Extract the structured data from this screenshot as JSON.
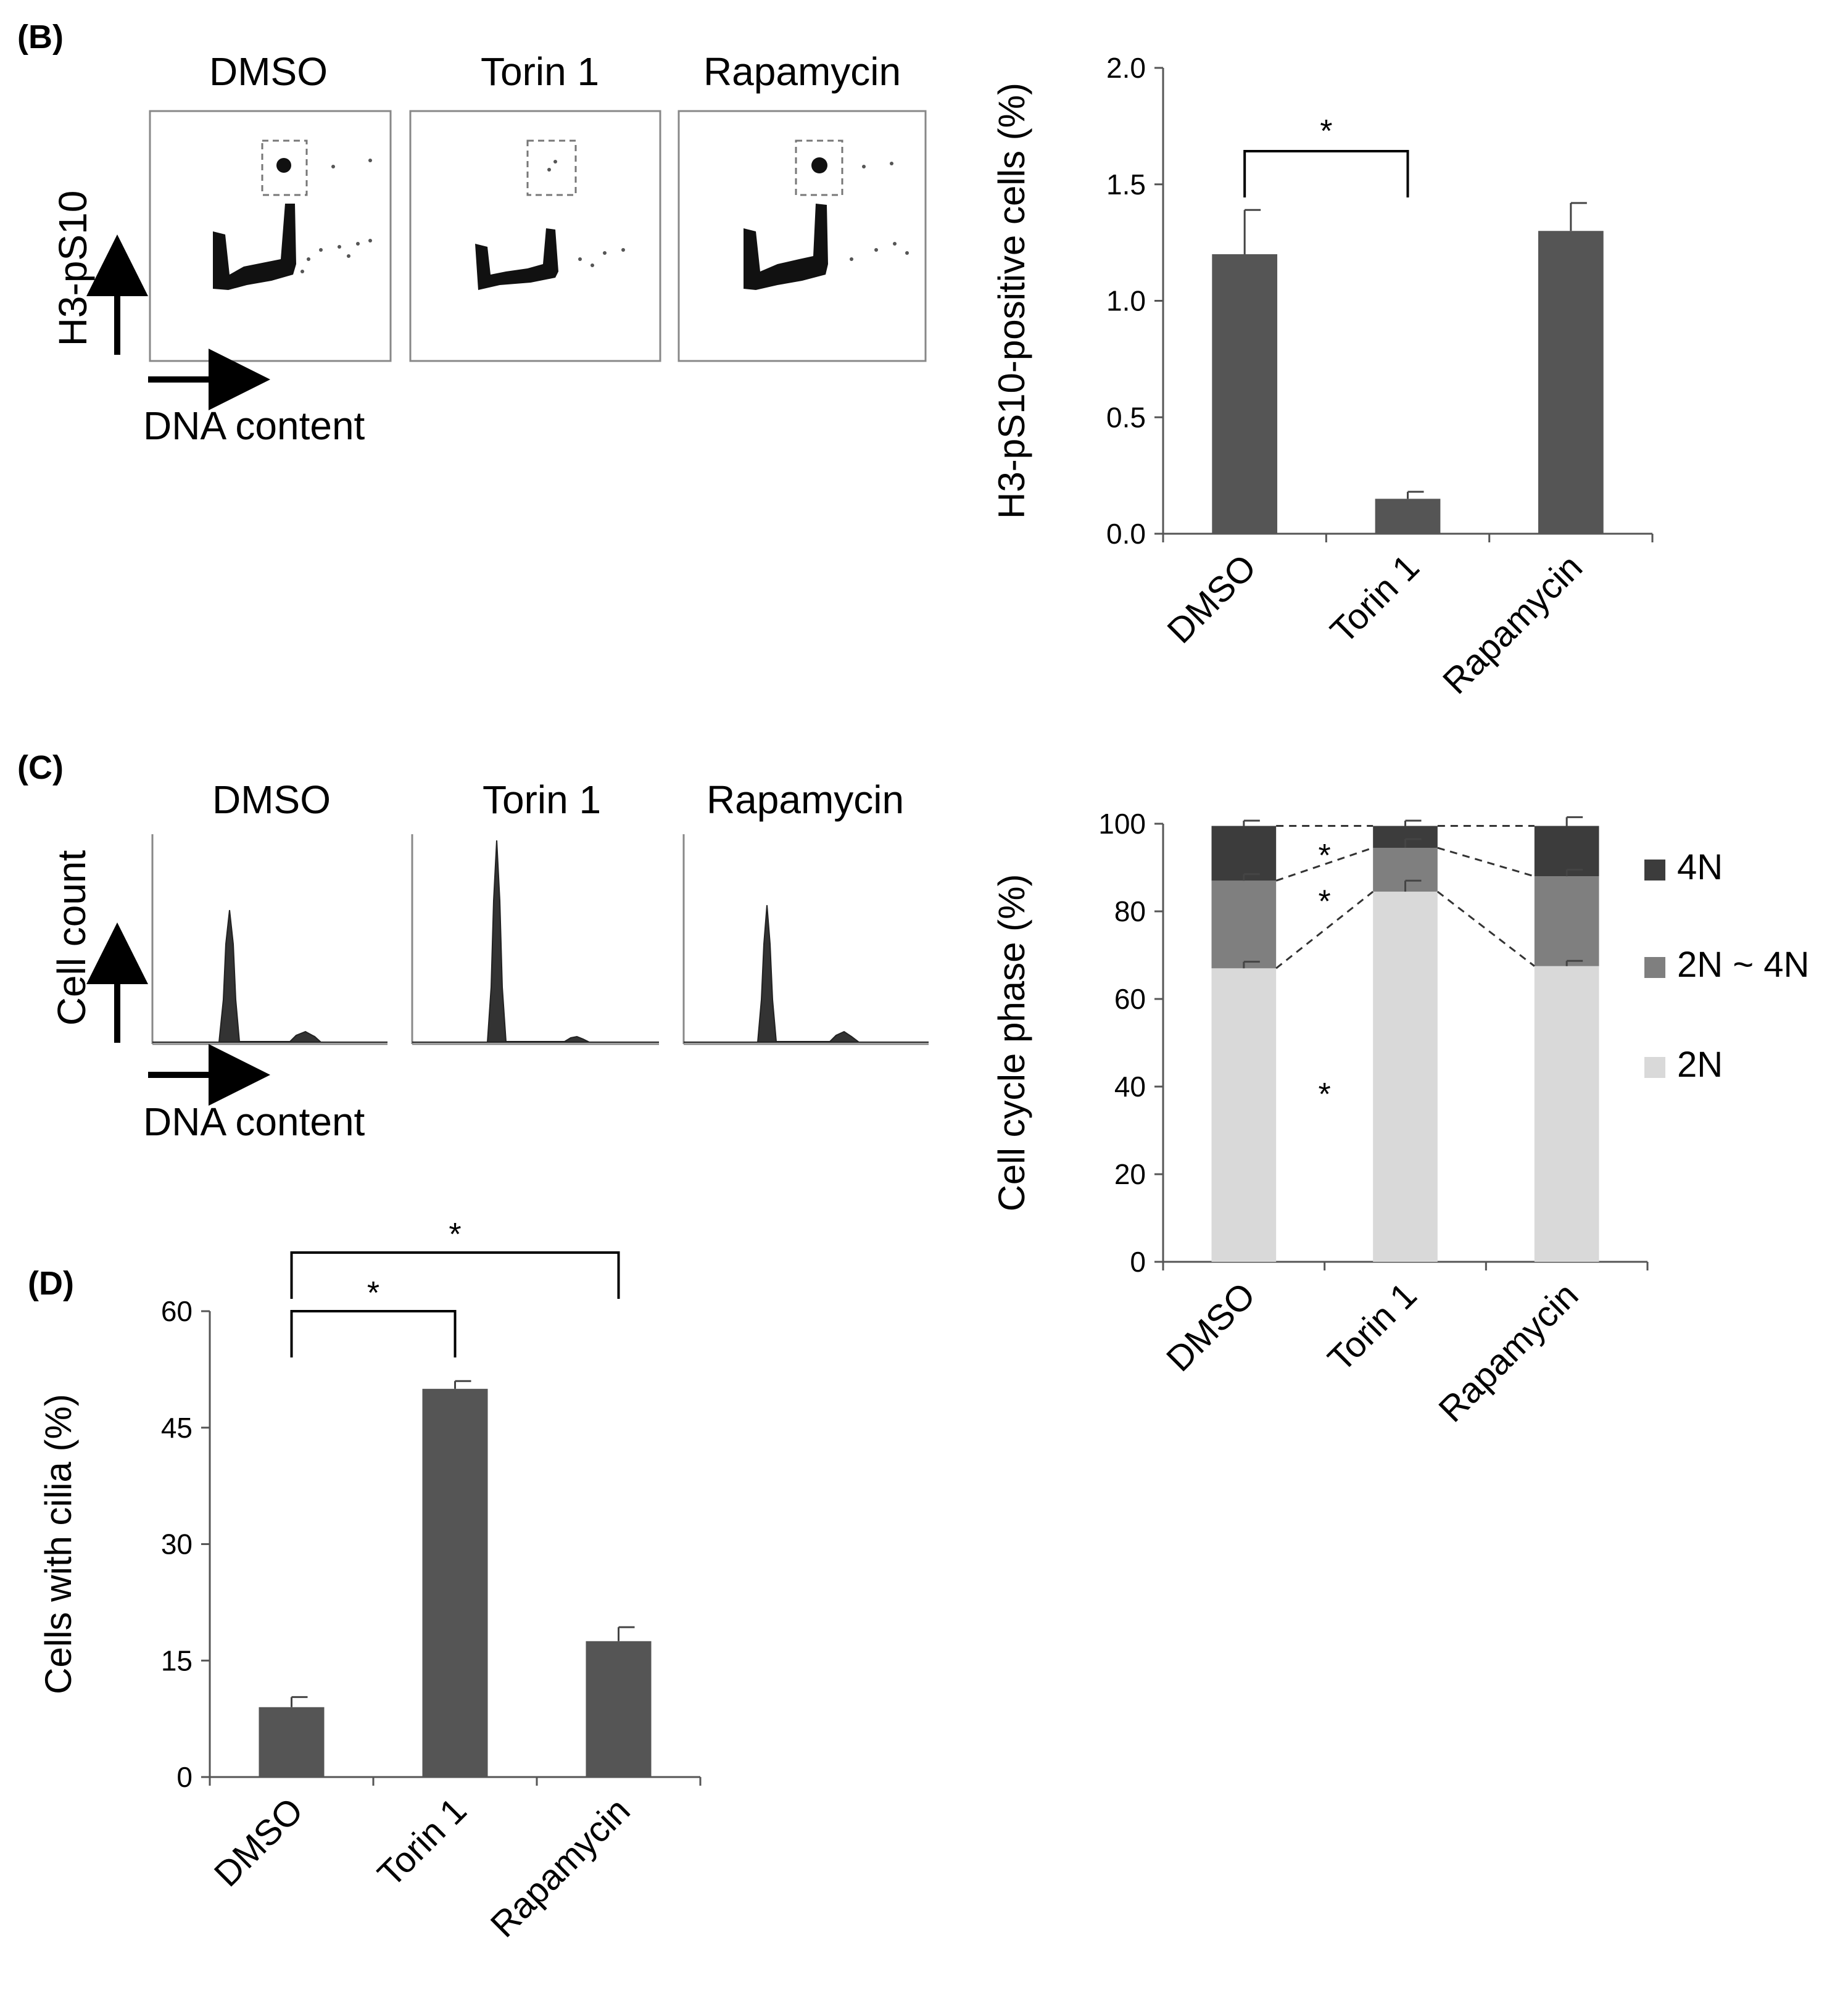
{
  "panel_labels": {
    "B": "(B)",
    "C": "(C)",
    "D": "(D)"
  },
  "conditions": [
    "DMSO",
    "Torin 1",
    "Rapamycin"
  ],
  "flow_axes": {
    "y_b": "H3-pS10",
    "y_c": "Cell count",
    "x": "DNA content"
  },
  "significance_mark": "*",
  "colors": {
    "bar": "#555555",
    "phase_4N": "#3c3c3c",
    "phase_2N_4N": "#7f7f7f",
    "phase_2N": "#d9d9d9"
  },
  "chart_data": [
    {
      "id": "B",
      "type": "bar",
      "categories": [
        "DMSO",
        "Torin 1",
        "Rapamycin"
      ],
      "values": [
        1.2,
        0.15,
        1.3
      ],
      "errors": [
        0.19,
        0.03,
        0.12
      ],
      "ylabel": "H3-pS10-positive cells (%)",
      "ylim": [
        0,
        2.0
      ],
      "yticks": [
        "0.0",
        "0.5",
        "1.0",
        "1.5",
        "2.0"
      ],
      "significance": [
        {
          "from": "DMSO",
          "to": "Torin 1",
          "label": "*"
        }
      ]
    },
    {
      "id": "C",
      "type": "bar",
      "stacked": true,
      "categories": [
        "DMSO",
        "Torin 1",
        "Rapamycin"
      ],
      "series": [
        {
          "name": "2N",
          "values": [
            67,
            84.5,
            67.5
          ],
          "errors": [
            1.5,
            2.5,
            1.2
          ]
        },
        {
          "name": "2N ~ 4N",
          "values": [
            20,
            10,
            20.5
          ],
          "errors": [
            1.5,
            2.0,
            1.5
          ]
        },
        {
          "name": "4N",
          "values": [
            12.5,
            5,
            11.5
          ],
          "errors": [
            1.2,
            1.2,
            2.0
          ]
        }
      ],
      "legend": [
        "4N",
        "2N ~ 4N",
        "2N"
      ],
      "ylabel": "Cell cycle phase (%)",
      "ylim": [
        0,
        100
      ],
      "yticks": [
        "0",
        "20",
        "40",
        "60",
        "80",
        "100"
      ],
      "annotations": [
        "*",
        "*",
        "*"
      ]
    },
    {
      "id": "D",
      "type": "bar",
      "categories": [
        "DMSO",
        "Torin 1",
        "Rapamycin"
      ],
      "values": [
        9,
        50,
        17.5
      ],
      "errors": [
        1.3,
        1.0,
        1.8
      ],
      "ylabel": "Cells with cilia (%)",
      "ylim": [
        0,
        60
      ],
      "yticks": [
        "0",
        "15",
        "30",
        "45",
        "60"
      ],
      "significance": [
        {
          "from": "DMSO",
          "to": "Torin 1",
          "label": "*"
        },
        {
          "from": "DMSO",
          "to": "Rapamycin",
          "label": "*"
        }
      ]
    }
  ]
}
